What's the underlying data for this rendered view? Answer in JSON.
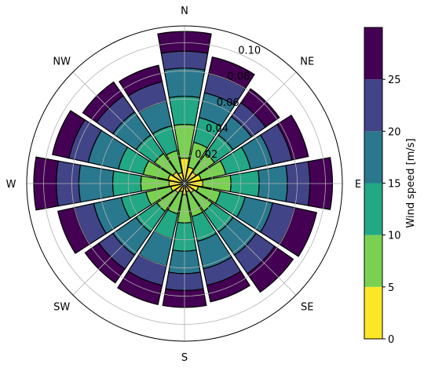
{
  "chart_data": {
    "type": "polar-stacked-bar",
    "title": "",
    "directions": [
      "N",
      "NNE",
      "NE",
      "ENE",
      "E",
      "ESE",
      "SE",
      "SSE",
      "S",
      "SSW",
      "SW",
      "WSW",
      "W",
      "WNW",
      "NW",
      "NNW"
    ],
    "compass_labels": [
      "N",
      "NE",
      "E",
      "SE",
      "S",
      "SW",
      "W",
      "NW"
    ],
    "bin_edges": [
      0,
      5,
      10,
      15,
      20,
      25
    ],
    "series": [
      {
        "bin": "0-5",
        "color": "#fde725",
        "values": [
          0.018,
          0.012,
          0.01,
          0.012,
          0.013,
          0.01,
          0.008,
          0.006,
          0.008,
          0.006,
          0.008,
          0.01,
          0.011,
          0.012,
          0.01,
          0.008
        ]
      },
      {
        "bin": "5-10",
        "color": "#7ad151",
        "values": [
          0.024,
          0.018,
          0.016,
          0.018,
          0.02,
          0.016,
          0.016,
          0.018,
          0.02,
          0.016,
          0.016,
          0.018,
          0.02,
          0.018,
          0.016,
          0.016
        ]
      },
      {
        "bin": "10-15",
        "color": "#22a884",
        "values": [
          0.02,
          0.018,
          0.016,
          0.018,
          0.02,
          0.018,
          0.018,
          0.018,
          0.02,
          0.018,
          0.018,
          0.018,
          0.02,
          0.018,
          0.016,
          0.018
        ]
      },
      {
        "bin": "15-20",
        "color": "#2a788e",
        "values": [
          0.02,
          0.018,
          0.016,
          0.016,
          0.02,
          0.02,
          0.02,
          0.02,
          0.016,
          0.02,
          0.02,
          0.02,
          0.024,
          0.022,
          0.02,
          0.018
        ]
      },
      {
        "bin": "20-25",
        "color": "#414487",
        "values": [
          0.012,
          0.014,
          0.012,
          0.014,
          0.016,
          0.016,
          0.016,
          0.012,
          0.012,
          0.014,
          0.012,
          0.014,
          0.016,
          0.014,
          0.014,
          0.014
        ]
      },
      {
        "bin": "25+",
        "color": "#440154",
        "values": [
          0.014,
          0.012,
          0.012,
          0.012,
          0.016,
          0.016,
          0.016,
          0.012,
          0.012,
          0.014,
          0.012,
          0.012,
          0.016,
          0.012,
          0.012,
          0.012
        ]
      }
    ],
    "r_ticks": [
      "0.02",
      "0.04",
      "0.06",
      "0.08",
      "0.10"
    ],
    "r_tick_values": [
      0.02,
      0.04,
      0.06,
      0.08,
      0.1
    ],
    "rmax": 0.112,
    "grid": true,
    "colorbar": {
      "label": "Wind speed [m/s]",
      "ticks": [
        "0",
        "5",
        "10",
        "15",
        "20",
        "25"
      ],
      "colors": [
        "#fde725",
        "#7ad151",
        "#22a884",
        "#2a788e",
        "#414487",
        "#440154"
      ]
    }
  }
}
